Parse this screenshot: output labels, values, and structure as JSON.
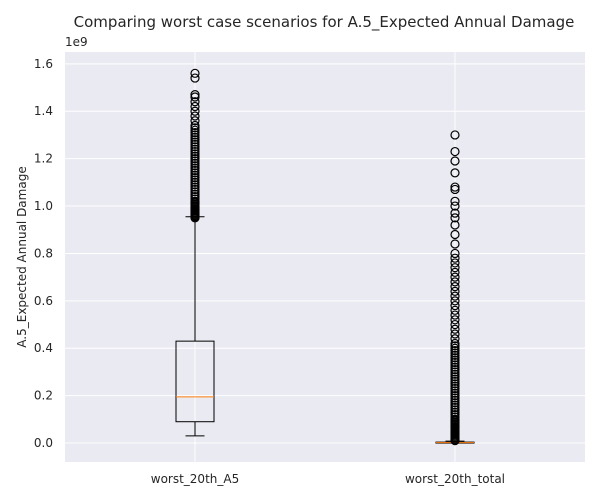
{
  "chart_data": {
    "type": "box",
    "title": "Comparing worst case scenarios for A.5_Expected Annual Damage",
    "ylabel": "A.5_Expected Annual Damage",
    "y_offset_label": "1e9",
    "ylim": [
      -0.08,
      1.65
    ],
    "yticks": [
      0.0,
      0.2,
      0.4,
      0.6,
      0.8,
      1.0,
      1.2,
      1.4,
      1.6
    ],
    "ytick_labels": [
      "0.0",
      "0.2",
      "0.4",
      "0.6",
      "0.8",
      "1.0",
      "1.2",
      "1.4",
      "1.6"
    ],
    "grid": true,
    "colors": {
      "background": "#eaeaf2",
      "grid": "#ffffff",
      "box": "#000000",
      "median": "#ff7f0e"
    },
    "boxes": [
      {
        "category": "worst_20th_A5",
        "whisker_low": 0.03,
        "q1": 0.09,
        "median": 0.195,
        "q3": 0.43,
        "whisker_high": 0.955,
        "outliers": [
          0.95,
          0.955,
          0.96,
          0.965,
          0.97,
          0.975,
          0.98,
          0.985,
          0.99,
          0.995,
          1.0,
          1.005,
          1.01,
          1.015,
          1.02,
          1.03,
          1.04,
          1.05,
          1.06,
          1.07,
          1.08,
          1.09,
          1.1,
          1.11,
          1.12,
          1.13,
          1.14,
          1.15,
          1.16,
          1.17,
          1.18,
          1.19,
          1.2,
          1.21,
          1.22,
          1.23,
          1.24,
          1.25,
          1.26,
          1.27,
          1.28,
          1.29,
          1.3,
          1.31,
          1.32,
          1.33,
          1.34,
          1.36,
          1.38,
          1.4,
          1.42,
          1.44,
          1.46,
          1.47,
          1.54,
          1.56
        ]
      },
      {
        "category": "worst_20th_total",
        "whisker_low": 0.0,
        "q1": 0.0,
        "median": 0.002,
        "q3": 0.004,
        "whisker_high": 0.008,
        "outliers": [
          0.01,
          0.015,
          0.02,
          0.025,
          0.03,
          0.035,
          0.04,
          0.045,
          0.05,
          0.055,
          0.06,
          0.065,
          0.07,
          0.075,
          0.08,
          0.085,
          0.09,
          0.095,
          0.1,
          0.11,
          0.12,
          0.13,
          0.14,
          0.15,
          0.16,
          0.17,
          0.18,
          0.19,
          0.2,
          0.21,
          0.22,
          0.23,
          0.24,
          0.25,
          0.26,
          0.27,
          0.28,
          0.29,
          0.3,
          0.31,
          0.32,
          0.33,
          0.34,
          0.35,
          0.36,
          0.37,
          0.38,
          0.39,
          0.4,
          0.41,
          0.42,
          0.44,
          0.46,
          0.48,
          0.5,
          0.52,
          0.54,
          0.56,
          0.58,
          0.6,
          0.62,
          0.64,
          0.66,
          0.68,
          0.7,
          0.72,
          0.74,
          0.76,
          0.78,
          0.8,
          0.84,
          0.88,
          0.92,
          0.95,
          0.97,
          1.0,
          1.02,
          1.07,
          1.08,
          1.14,
          1.19,
          1.23,
          1.3
        ]
      }
    ]
  }
}
